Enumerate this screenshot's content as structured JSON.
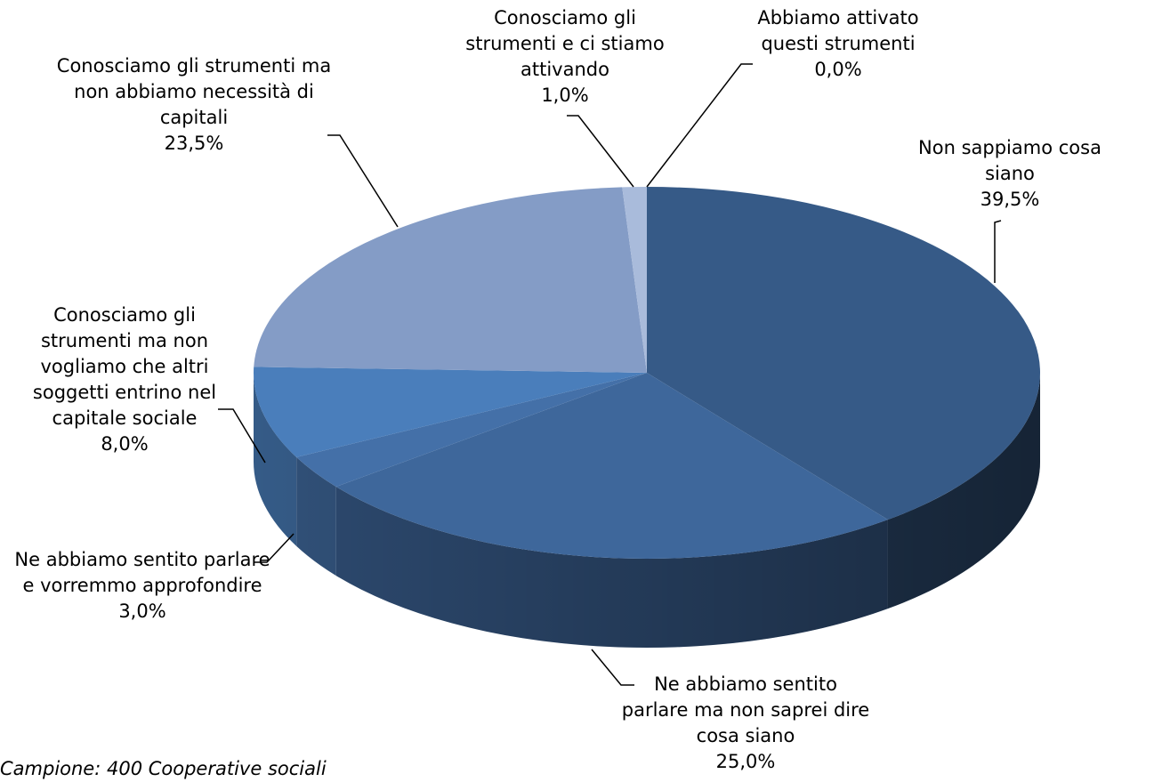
{
  "chart_data": {
    "type": "pie3d",
    "categories": [
      "Non sappiamo cosa siano",
      "Ne abbiamo sentito parlare ma non saprei dire cosa siano",
      "Ne abbiamo sentito parlare e vorremmo approfondire",
      "Conosciamo gli strumenti ma non vogliamo che altri soggetti entrino nel capitale sociale",
      "Conosciamo gli strumenti ma non abbiamo necessità di capitali",
      "Conosciamo gli strumenti e ci stiamo attivando",
      "Abbiamo attivato questi strumenti"
    ],
    "values": [
      39.5,
      25.0,
      3.0,
      8.0,
      23.5,
      1.0,
      0.0
    ],
    "value_labels": [
      "39,5%",
      "25,0%",
      "3,0%",
      "8,0%",
      "23,5%",
      "1,0%",
      "0,0%"
    ],
    "colors": [
      "#365a87",
      "#3e679b",
      "#4470a8",
      "#4a7ebb",
      "#849cc6",
      "#a9bbdb",
      "#c5d1e8"
    ],
    "note": "Campione: 400 Cooperative sociali"
  }
}
